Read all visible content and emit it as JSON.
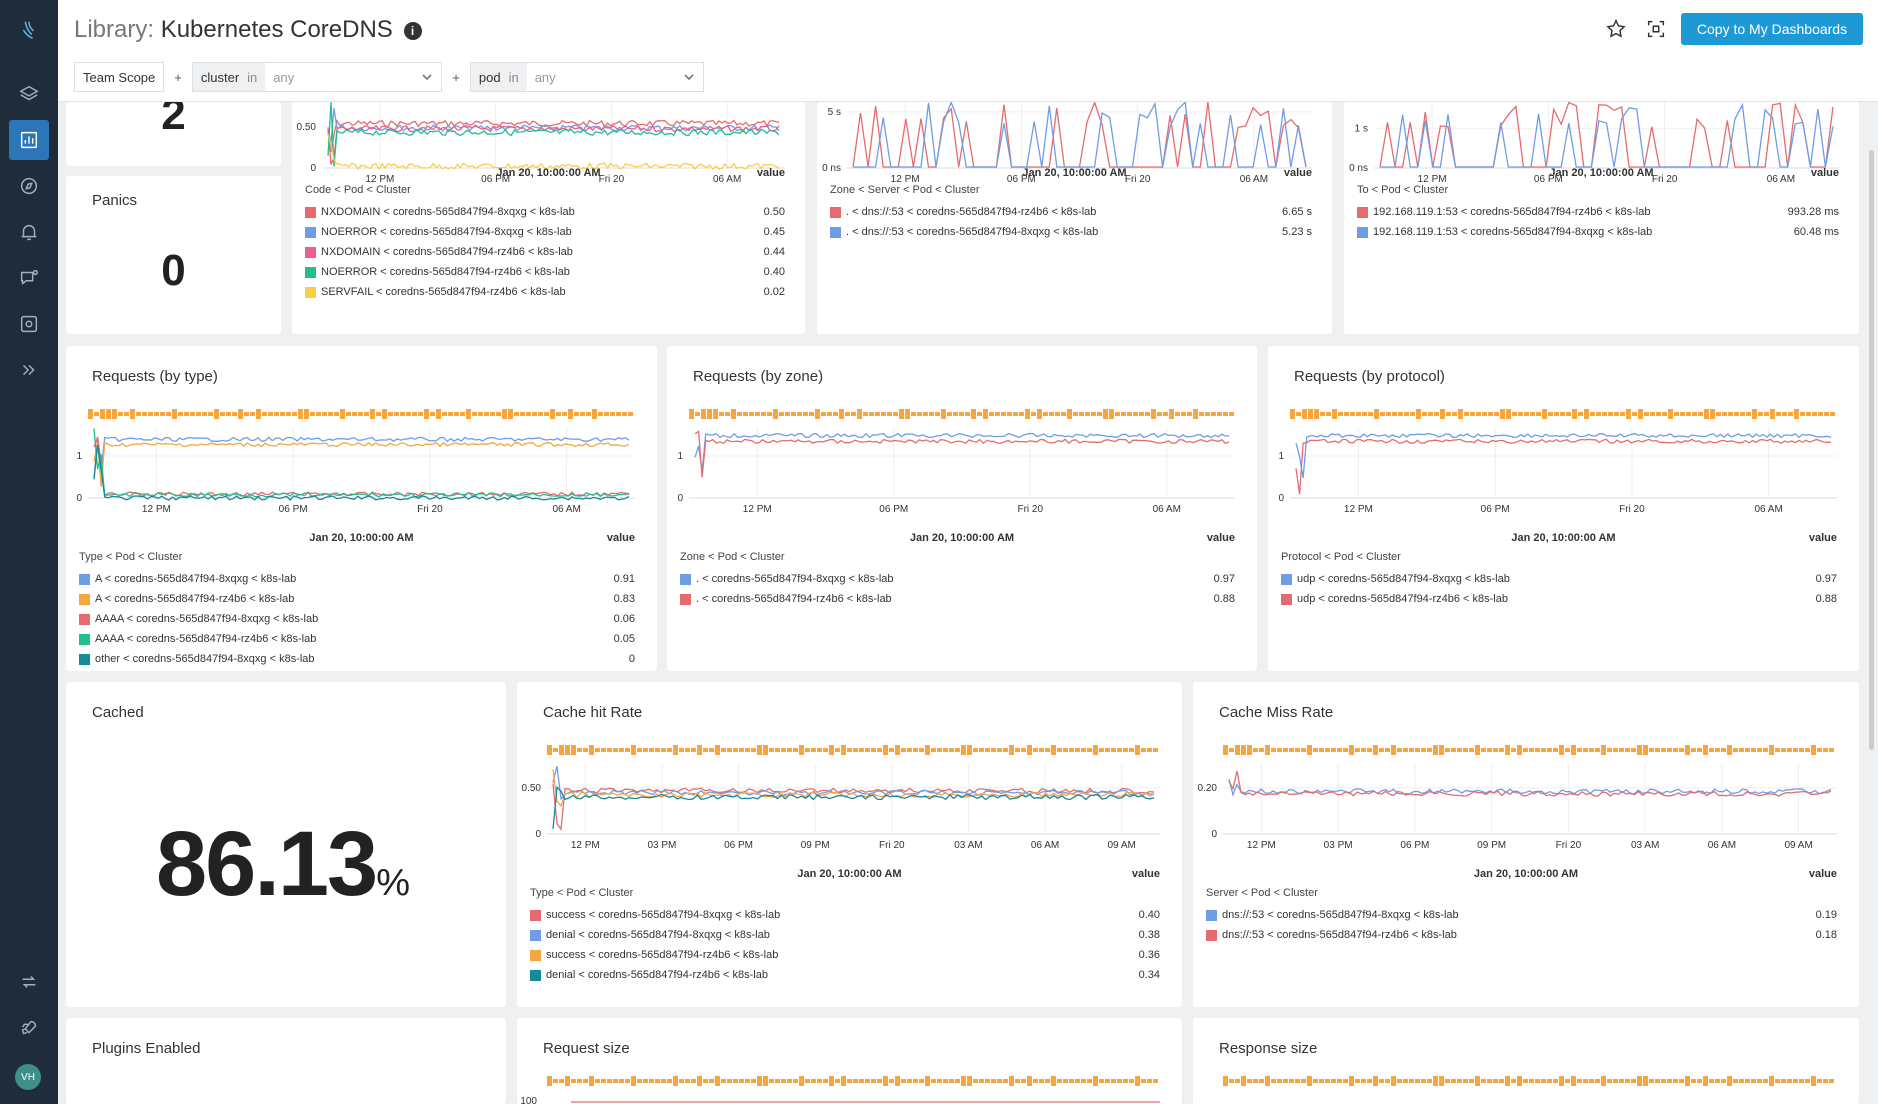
{
  "page": {
    "title_prefix": "Library:",
    "title": "Kubernetes CoreDNS",
    "info_icon": "i",
    "copy_button": "Copy to My Dashboards"
  },
  "filters": {
    "team_scope": "Team Scope",
    "plus": "+",
    "cluster": {
      "key": "cluster",
      "op": "in",
      "value": "any"
    },
    "pod": {
      "key": "pod",
      "op": "in",
      "value": "any"
    }
  },
  "user": {
    "initials": "VH"
  },
  "colors": {
    "red": "#e66b6e",
    "blue": "#6e9de6",
    "pink": "#ec5f90",
    "green": "#1fbf8f",
    "yellow": "#f7d046",
    "orange": "#f5a640",
    "teal": "#16899b",
    "accent": "#1d9ad6"
  },
  "panels": {
    "panics": {
      "title": "Panics",
      "value": "0"
    },
    "top_number": {
      "value": "2"
    },
    "cached": {
      "title": "Cached",
      "value": "86.13",
      "unit": "%"
    },
    "plugins": {
      "title": "Plugins Enabled"
    },
    "request_size": {
      "title": "Request size",
      "ytick": "100"
    },
    "response_size": {
      "title": "Response size"
    },
    "responses_by_code": {
      "yticks": [
        "0.50",
        "0"
      ],
      "xticks": [
        "12 PM",
        "06 PM",
        "Fri 20",
        "06 AM"
      ],
      "date": "Jan 20, 10:00:00 AM",
      "value_label": "value",
      "legend_head": "Code < Pod < Cluster",
      "rows": [
        {
          "label": "NXDOMAIN < coredns-565d847f94-8xqxg < k8s-lab",
          "value": "0.50",
          "color": "#e66b6e"
        },
        {
          "label": "NOERROR < coredns-565d847f94-8xqxg < k8s-lab",
          "value": "0.45",
          "color": "#6e9de6"
        },
        {
          "label": "NXDOMAIN < coredns-565d847f94-rz4b6 < k8s-lab",
          "value": "0.44",
          "color": "#ec5f90"
        },
        {
          "label": "NOERROR < coredns-565d847f94-rz4b6 < k8s-lab",
          "value": "0.40",
          "color": "#1fbf8f"
        },
        {
          "label": "SERVFAIL < coredns-565d847f94-rz4b6 < k8s-lab",
          "value": "0.02",
          "color": "#f7d046"
        }
      ]
    },
    "latency_by_server": {
      "yticks": [
        "5 s",
        "0 ns"
      ],
      "xticks": [
        "12 PM",
        "06 PM",
        "Fri 20",
        "06 AM"
      ],
      "date": "Jan 20, 10:00:00 AM",
      "value_label": "value",
      "legend_head": "Zone < Server < Pod < Cluster",
      "rows": [
        {
          "label": ". < dns://:53 < coredns-565d847f94-rz4b6 < k8s-lab",
          "value": "6.65 s",
          "color": "#e66b6e"
        },
        {
          "label": ". < dns://:53 < coredns-565d847f94-8xqxg < k8s-lab",
          "value": "5.23 s",
          "color": "#6e9de6"
        }
      ]
    },
    "forward_latency": {
      "yticks": [
        "1 s",
        "0 ns"
      ],
      "xticks": [
        "12 PM",
        "06 PM",
        "Fri 20",
        "06 AM"
      ],
      "date": "Jan 20, 10:00:00 AM",
      "value_label": "value",
      "legend_head": "To < Pod < Cluster",
      "rows": [
        {
          "label": "192.168.119.1:53 < coredns-565d847f94-rz4b6 < k8s-lab",
          "value": "993.28 ms",
          "color": "#e66b6e"
        },
        {
          "label": "192.168.119.1:53 < coredns-565d847f94-8xqxg < k8s-lab",
          "value": "60.48 ms",
          "color": "#6e9de6"
        }
      ]
    },
    "requests_by_type": {
      "title": "Requests (by type)",
      "yticks": [
        "1",
        "0"
      ],
      "xticks": [
        "12 PM",
        "06 PM",
        "Fri 20",
        "06 AM"
      ],
      "date": "Jan 20, 10:00:00 AM",
      "value_label": "value",
      "legend_head": "Type < Pod < Cluster",
      "rows": [
        {
          "label": "A < coredns-565d847f94-8xqxg < k8s-lab",
          "value": "0.91",
          "color": "#6e9de6"
        },
        {
          "label": "A < coredns-565d847f94-rz4b6 < k8s-lab",
          "value": "0.83",
          "color": "#f5a640"
        },
        {
          "label": "AAAA < coredns-565d847f94-8xqxg < k8s-lab",
          "value": "0.06",
          "color": "#e66b6e"
        },
        {
          "label": "AAAA < coredns-565d847f94-rz4b6 < k8s-lab",
          "value": "0.05",
          "color": "#1fbf8f"
        },
        {
          "label": "other < coredns-565d847f94-8xqxg < k8s-lab",
          "value": "0",
          "color": "#16899b"
        }
      ]
    },
    "requests_by_zone": {
      "title": "Requests (by zone)",
      "yticks": [
        "1",
        "0"
      ],
      "xticks": [
        "12 PM",
        "06 PM",
        "Fri 20",
        "06 AM"
      ],
      "date": "Jan 20, 10:00:00 AM",
      "value_label": "value",
      "legend_head": "Zone < Pod < Cluster",
      "rows": [
        {
          "label": ". < coredns-565d847f94-8xqxg < k8s-lab",
          "value": "0.97",
          "color": "#6e9de6"
        },
        {
          "label": ". < coredns-565d847f94-rz4b6 < k8s-lab",
          "value": "0.88",
          "color": "#e66b6e"
        }
      ]
    },
    "requests_by_protocol": {
      "title": "Requests (by protocol)",
      "yticks": [
        "1",
        "0"
      ],
      "xticks": [
        "12 PM",
        "06 PM",
        "Fri 20",
        "06 AM"
      ],
      "date": "Jan 20, 10:00:00 AM",
      "value_label": "value",
      "legend_head": "Protocol < Pod < Cluster",
      "rows": [
        {
          "label": "udp < coredns-565d847f94-8xqxg < k8s-lab",
          "value": "0.97",
          "color": "#6e9de6"
        },
        {
          "label": "udp < coredns-565d847f94-rz4b6 < k8s-lab",
          "value": "0.88",
          "color": "#e66b6e"
        }
      ]
    },
    "cache_hit_rate": {
      "title": "Cache hit Rate",
      "yticks": [
        "0.50",
        "0"
      ],
      "xticks": [
        "12 PM",
        "03 PM",
        "06 PM",
        "09 PM",
        "Fri 20",
        "03 AM",
        "06 AM",
        "09 AM"
      ],
      "date": "Jan 20, 10:00:00 AM",
      "value_label": "value",
      "legend_head": "Type < Pod < Cluster",
      "rows": [
        {
          "label": "success < coredns-565d847f94-8xqxg < k8s-lab",
          "value": "0.40",
          "color": "#e66b6e"
        },
        {
          "label": "denial < coredns-565d847f94-8xqxg < k8s-lab",
          "value": "0.38",
          "color": "#6e9de6"
        },
        {
          "label": "success < coredns-565d847f94-rz4b6 < k8s-lab",
          "value": "0.36",
          "color": "#f5a640"
        },
        {
          "label": "denial < coredns-565d847f94-rz4b6 < k8s-lab",
          "value": "0.34",
          "color": "#16899b"
        }
      ]
    },
    "cache_miss_rate": {
      "title": "Cache Miss Rate",
      "yticks": [
        "0.20",
        "0"
      ],
      "xticks": [
        "12 PM",
        "03 PM",
        "06 PM",
        "09 PM",
        "Fri 20",
        "03 AM",
        "06 AM",
        "09 AM"
      ],
      "date": "Jan 20, 10:00:00 AM",
      "value_label": "value",
      "legend_head": "Server < Pod < Cluster",
      "rows": [
        {
          "label": "dns://:53 < coredns-565d847f94-8xqxg < k8s-lab",
          "value": "0.19",
          "color": "#6e9de6"
        },
        {
          "label": "dns://:53 < coredns-565d847f94-rz4b6 < k8s-lab",
          "value": "0.18",
          "color": "#e66b6e"
        }
      ]
    }
  }
}
